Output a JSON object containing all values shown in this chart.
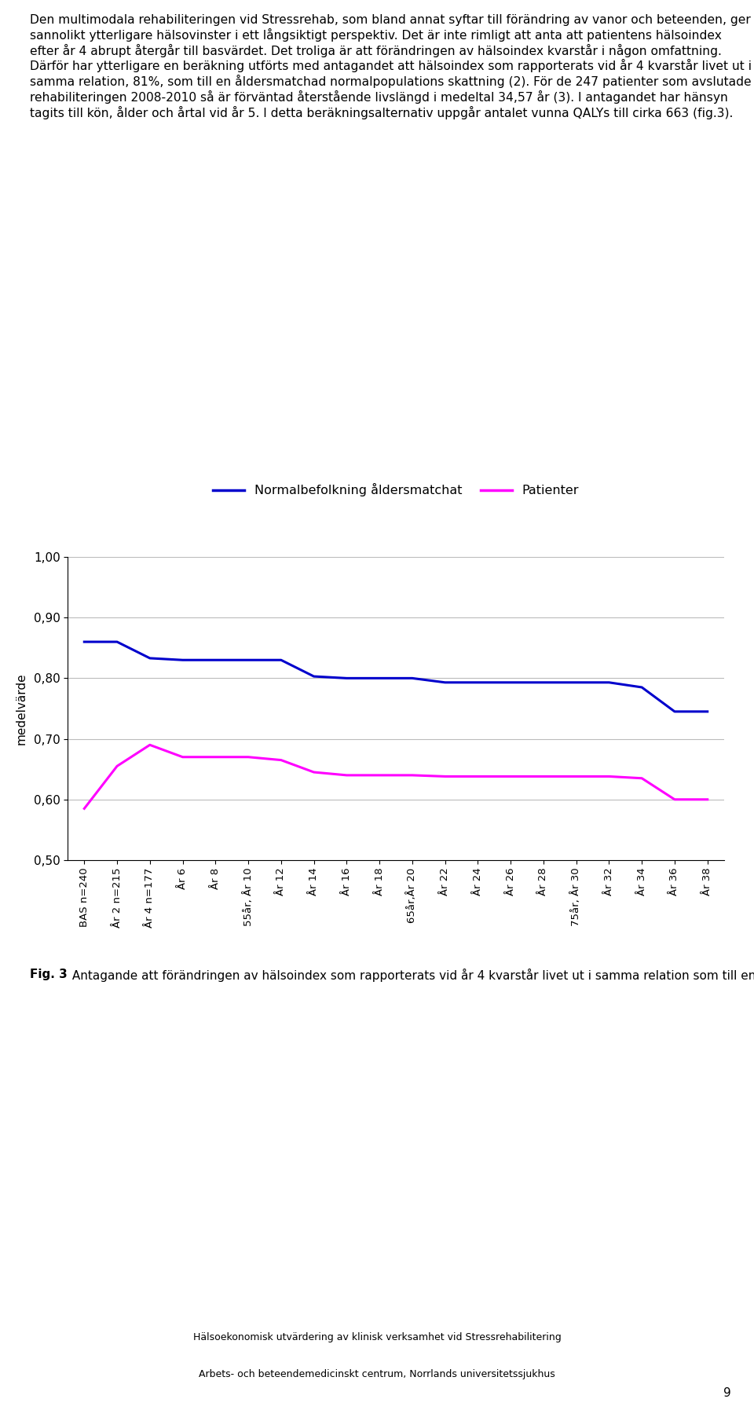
{
  "x_labels": [
    "BAS n=240",
    "År 2 n=215",
    "År 4 n=177",
    "År 6",
    "År 8",
    "55år, År 10",
    "År 12",
    "År 14",
    "År 16",
    "År 18",
    "65år,År 20",
    "År 22",
    "År 24",
    "År 26",
    "År 28",
    "75år, År 30",
    "År 32",
    "År 34",
    "År 36",
    "År 38"
  ],
  "blue_values": [
    0.86,
    0.86,
    0.833,
    0.83,
    0.83,
    0.83,
    0.83,
    0.803,
    0.8,
    0.8,
    0.8,
    0.793,
    0.793,
    0.793,
    0.793,
    0.793,
    0.793,
    0.785,
    0.745,
    0.745
  ],
  "pink_values": [
    0.585,
    0.655,
    0.69,
    0.67,
    0.67,
    0.67,
    0.665,
    0.645,
    0.64,
    0.64,
    0.64,
    0.638,
    0.638,
    0.638,
    0.638,
    0.638,
    0.638,
    0.635,
    0.6,
    0.6
  ],
  "blue_color": "#0000CC",
  "pink_color": "#FF00FF",
  "ylabel": "medelvärde",
  "ylim": [
    0.5,
    1.0
  ],
  "yticks": [
    0.5,
    0.6,
    0.7,
    0.8,
    0.9,
    1.0
  ],
  "legend_blue": "Normalbefolkning åldersmatchat",
  "legend_pink": "Patienter",
  "fig_caption_bold": "Fig. 3",
  "fig_caption_normal": " Antagande att förändringen av hälsoindex som rapporterats vid år 4 kvarstår livet ut i samma relation som till en åldersmatchad normalpopulations skattning. n=antal svar.",
  "footer_line1": "Hälsoekonomisk utvärdering av klinisk verksamhet vid Stressrehabilitering",
  "footer_line2": "Arbets- och beteendemedicinskt centrum, Norrlands universitetssjukhus",
  "page_number": "9",
  "header_text_lines": [
    "Den multimodala rehabiliteringen vid Stressrehab, som bland annat syftar till förändring av vanor och beteenden, ger sannolikt ytterligare hälsovinster i ett långsiktigt perspektiv. Det är inte rimligt att anta att patientens hälsoindex efter år 4 abrupt återgår till basvärdet. Det troliga är att förändringen av hälsoindex kvarstår i någon omfattning. Därför har ytterligare en beräkning utförts med antagandet att hälsoindex som rapporterats vid år 4 kvarstår livet ut i samma relation, 81%, som till en åldersmatchad normalpopulations skattning (2). För de 247 patienter som avslutade rehabiliteringen 2008-2010 så är förväntad återstående livslängd i medeltal 34,57 år (3). I antagandet har hänsyn tagits till kön, ålder och årtal vid år 5. I detta beräkningsalternativ uppgår antalet vunna QALYs till cirka 663 (fig.3)."
  ]
}
